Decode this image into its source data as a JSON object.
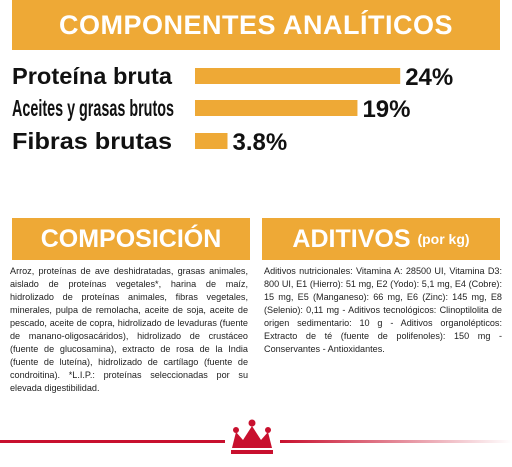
{
  "header": {
    "title": "COMPONENTES ANALÍTICOS"
  },
  "chart_data": {
    "type": "bar",
    "orientation": "horizontal",
    "categories": [
      "Proteína bruta",
      "Aceites y grasas brutos",
      "Fibras brutas"
    ],
    "values": [
      24,
      19,
      3.8
    ],
    "value_labels": [
      "24%",
      "19%",
      "3.8%"
    ],
    "color": "#eea936"
  },
  "composition": {
    "title": "COMPOSICIÓN",
    "text": "Arroz, proteínas de ave deshidratadas, grasas animales, aislado de proteínas vegetales*, harina de maíz, hidrolizado de proteínas animales, fibras vegetales, minerales, pulpa de remolacha, aceite de soja, aceite de pescado, aceite de copra, hidrolizado de levaduras (fuente de manano-oligosacáridos), hidrolizado de crustáceo (fuente de glucosamina), extracto de rosa de la India (fuente de luteína), hidrolizado de cartílago (fuente de condroitina). *L.I.P.: proteínas seleccionadas por su elevada digestibilidad."
  },
  "additives": {
    "title": "ADITIVOS",
    "subtitle": "(por kg)",
    "text": "Aditivos nutricionales: Vitamina A: 28500 UI, Vitamina D3: 800 UI, E1 (Hierro): 51 mg, E2 (Yodo): 5,1 mg, E4 (Cobre): 15 mg, E5 (Manganeso): 66 mg, E6 (Zinc): 145 mg, E8 (Selenio): 0,11 mg - Aditivos tecnológicos: Clinoptilolita de origen sedimentario: 10 g - Aditivos organolépticos: Extracto de té (fuente de polifenoles): 150 mg - Conservantes - Antioxidantes."
  }
}
